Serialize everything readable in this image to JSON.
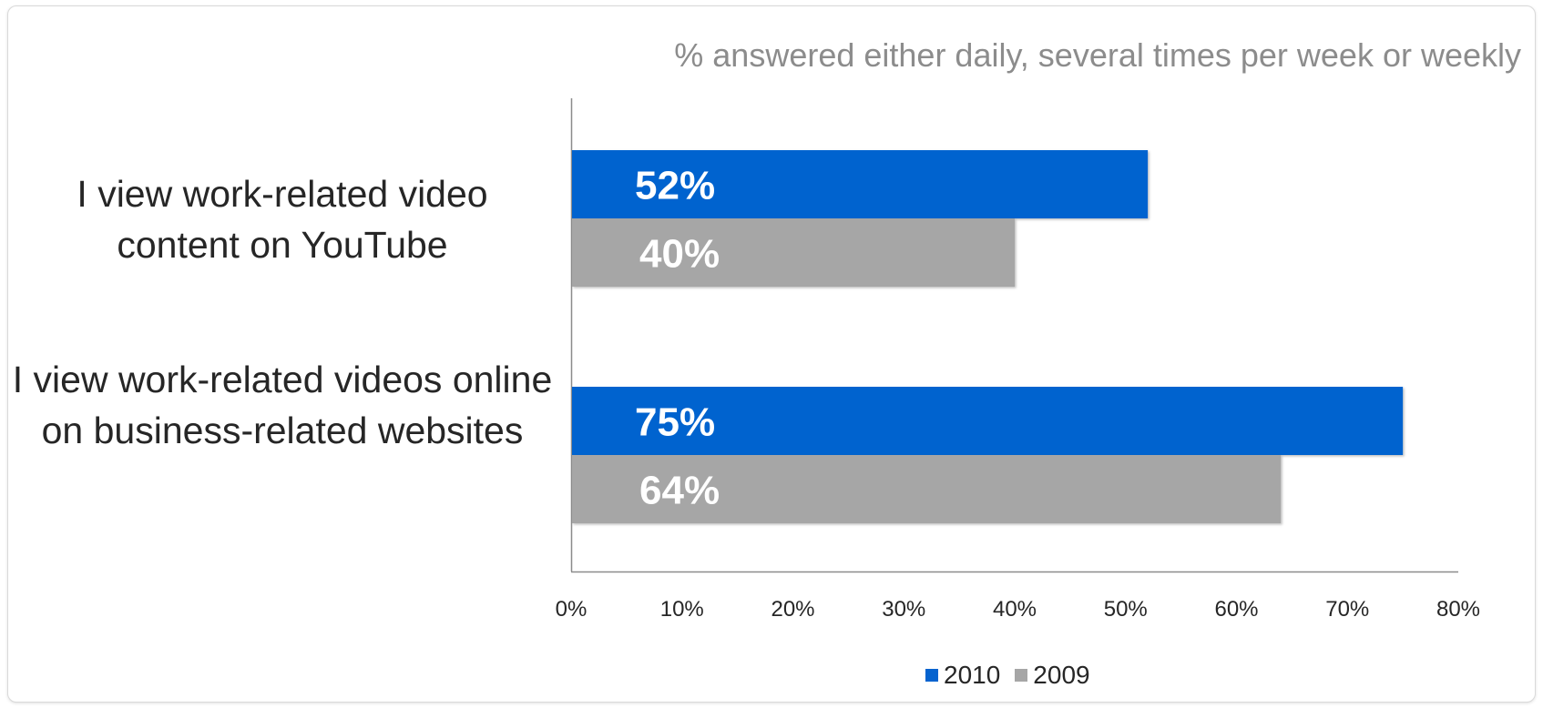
{
  "colors": {
    "series_2010": "#0563cf",
    "series_2009": "#a6a6a6",
    "axis": "#8c8c8c",
    "subtitle": "#8c8c8c",
    "text": "#262626",
    "bar_label": "#ffffff"
  },
  "chart_data": {
    "type": "bar",
    "orientation": "horizontal",
    "subtitle": "% answered either daily, several times per week or weekly",
    "categories": [
      "I view work-related video content on YouTube",
      "I view work-related videos online on business-related websites"
    ],
    "series": [
      {
        "name": "2010",
        "values": [
          52,
          75
        ],
        "data_labels": [
          "52%",
          "75%"
        ]
      },
      {
        "name": "2009",
        "values": [
          40,
          64
        ],
        "data_labels": [
          "40%",
          "64%"
        ]
      }
    ],
    "xlim": [
      0,
      80
    ],
    "x_ticks": [
      "0%",
      "10%",
      "20%",
      "30%",
      "40%",
      "50%",
      "60%",
      "70%",
      "80%"
    ],
    "grid": false,
    "legend_position": "bottom"
  }
}
